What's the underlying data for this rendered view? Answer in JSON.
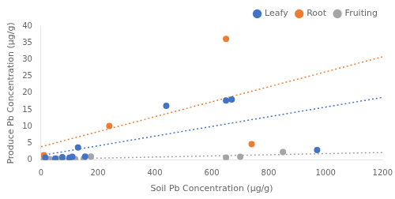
{
  "chart_data": {
    "type": "scatter",
    "xlabel": "Soil Pb Concentration (μg/g)",
    "ylabel": "Produce Pb Concentration (μg/g)",
    "xlim": [
      0,
      1200
    ],
    "xticks": [
      0,
      200,
      400,
      600,
      800,
      1000,
      1200
    ],
    "ylim": [
      0,
      40
    ],
    "yticks": [
      0,
      5,
      10,
      15,
      20,
      25,
      30,
      35,
      40
    ],
    "grid": false,
    "legend": "upper right",
    "series": [
      {
        "name": "Leafy",
        "color": "#4472C4",
        "marker": "circle",
        "x": [
          15,
          50,
          75,
          100,
          110,
          130,
          155,
          440,
          650,
          670,
          970
        ],
        "values": [
          0.8,
          0.5,
          0.9,
          0.7,
          1.0,
          3.8,
          1.1,
          16.2,
          17.8,
          18.1,
          3.0
        ]
      },
      {
        "name": "Root",
        "color": "#ED7D31",
        "marker": "circle",
        "x": [
          10,
          240,
          650,
          740
        ],
        "values": [
          1.5,
          10.2,
          36.2,
          4.8
        ]
      },
      {
        "name": "Fruiting",
        "color": "#A5A5A5",
        "marker": "circle",
        "x": [
          10,
          30,
          55,
          75,
          100,
          120,
          150,
          175,
          650,
          700,
          850
        ],
        "values": [
          0.2,
          0.3,
          0.4,
          0.3,
          0.5,
          0.3,
          0.4,
          1.1,
          0.8,
          1.0,
          2.4
        ]
      },
      {
        "type": "line",
        "line_style": "dotted",
        "color": "#4472C4",
        "x": [
          0,
          1200
        ],
        "values": [
          1.3903,
          18.7239
        ]
      },
      {
        "type": "line",
        "line_style": "dotted",
        "color": "#ED7D31",
        "x": [
          0,
          1200
        ],
        "values": [
          4.0175,
          30.82
        ]
      },
      {
        "type": "line",
        "line_style": "dotted",
        "color": "#A5A5A5",
        "x": [
          0,
          1200
        ],
        "values": [
          0.2498,
          2.2885
        ]
      }
    ]
  }
}
